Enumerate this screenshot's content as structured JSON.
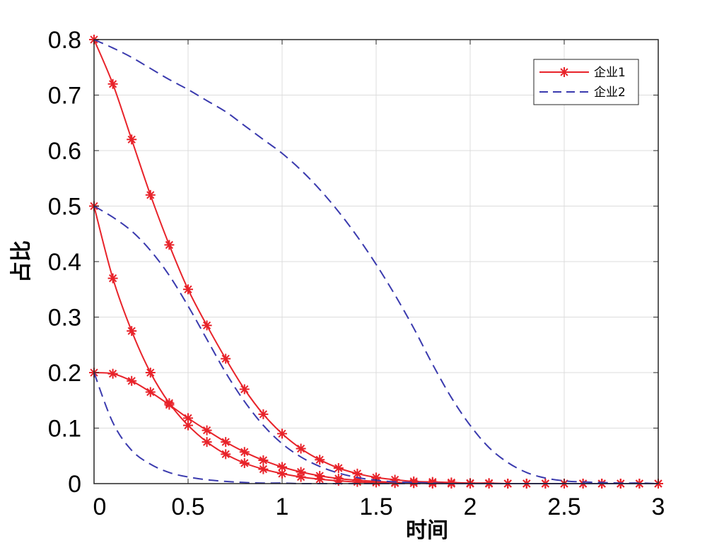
{
  "chart_data": {
    "type": "line",
    "xlabel": "时间",
    "ylabel": "占比",
    "xlim": [
      0,
      3
    ],
    "ylim": [
      0,
      0.8
    ],
    "xticks": [
      0,
      0.5,
      1,
      1.5,
      2,
      2.5,
      3
    ],
    "xtick_labels": [
      "0",
      "0.5",
      "1",
      "1.5",
      "2",
      "2.5",
      "3"
    ],
    "yticks": [
      0,
      0.1,
      0.2,
      0.3,
      0.4,
      0.5,
      0.6,
      0.7,
      0.8
    ],
    "ytick_labels": [
      "0",
      "0.1",
      "0.2",
      "0.3",
      "0.4",
      "0.5",
      "0.6",
      "0.7",
      "0.8"
    ],
    "grid": true,
    "legend_position": "top-right",
    "legend": [
      {
        "name": "企业1",
        "color": "#e8232a",
        "style": "solid-star"
      },
      {
        "name": "企业2",
        "color": "#3a3aae",
        "style": "dashed"
      }
    ],
    "x": [
      0,
      0.1,
      0.2,
      0.3,
      0.4,
      0.5,
      0.6,
      0.7,
      0.8,
      0.9,
      1.0,
      1.1,
      1.2,
      1.3,
      1.4,
      1.5,
      1.6,
      1.7,
      1.8,
      1.9,
      2.0,
      2.1,
      2.2,
      2.3,
      2.4,
      2.5,
      2.6,
      2.7,
      2.8,
      2.9,
      3.0
    ],
    "series": [
      {
        "name": "企业1",
        "color": "#e8232a",
        "marker": "star",
        "dashed": false,
        "values": [
          0.8,
          0.72,
          0.62,
          0.52,
          0.43,
          0.35,
          0.285,
          0.225,
          0.17,
          0.125,
          0.09,
          0.063,
          0.043,
          0.028,
          0.018,
          0.011,
          0.007,
          0.004,
          0.003,
          0.002,
          0.001,
          0.001,
          0.0,
          0.0,
          0.0,
          0.0,
          0.0,
          0.0,
          0.0,
          0.0,
          0.0
        ]
      },
      {
        "name": "企业1",
        "color": "#e8232a",
        "marker": "star",
        "dashed": false,
        "values": [
          0.5,
          0.37,
          0.275,
          0.2,
          0.145,
          0.105,
          0.075,
          0.053,
          0.037,
          0.026,
          0.018,
          0.012,
          0.008,
          0.005,
          0.003,
          0.002,
          0.001,
          0.001,
          0.0,
          0.0,
          0.0,
          0.0,
          0.0,
          0.0,
          0.0,
          0.0,
          0.0,
          0.0,
          0.0,
          0.0,
          0.0
        ]
      },
      {
        "name": "企业1",
        "color": "#e8232a",
        "marker": "star",
        "dashed": false,
        "values": [
          0.2,
          0.198,
          0.185,
          0.165,
          0.142,
          0.118,
          0.096,
          0.075,
          0.057,
          0.042,
          0.03,
          0.021,
          0.014,
          0.009,
          0.006,
          0.004,
          0.002,
          0.001,
          0.001,
          0.0,
          0.0,
          0.0,
          0.0,
          0.0,
          0.0,
          0.0,
          0.0,
          0.0,
          0.0,
          0.0,
          0.0
        ]
      },
      {
        "name": "企业2",
        "color": "#3a3aae",
        "marker": "none",
        "dashed": true,
        "values": [
          0.8,
          0.785,
          0.768,
          0.748,
          0.728,
          0.71,
          0.69,
          0.67,
          0.645,
          0.62,
          0.595,
          0.565,
          0.53,
          0.49,
          0.445,
          0.395,
          0.34,
          0.28,
          0.215,
          0.155,
          0.105,
          0.065,
          0.038,
          0.02,
          0.01,
          0.005,
          0.003,
          0.002,
          0.001,
          0.001,
          0.0
        ]
      },
      {
        "name": "企业2",
        "color": "#3a3aae",
        "marker": "none",
        "dashed": true,
        "values": [
          0.5,
          0.48,
          0.455,
          0.42,
          0.375,
          0.32,
          0.26,
          0.2,
          0.148,
          0.105,
          0.072,
          0.048,
          0.031,
          0.019,
          0.011,
          0.006,
          0.003,
          0.002,
          0.001,
          0.0,
          0.0,
          0.0,
          0.0,
          0.0,
          0.0,
          0.0,
          0.0,
          0.0,
          0.0,
          0.0,
          0.0
        ]
      },
      {
        "name": "企业2",
        "color": "#3a3aae",
        "marker": "none",
        "dashed": true,
        "values": [
          0.2,
          0.11,
          0.06,
          0.035,
          0.02,
          0.012,
          0.007,
          0.004,
          0.002,
          0.001,
          0.001,
          0.0,
          0.0,
          0.0,
          0.0,
          0.0,
          0.0,
          0.0,
          0.0,
          0.0,
          0.0,
          0.0,
          0.0,
          0.0,
          0.0,
          0.0,
          0.0,
          0.0,
          0.0,
          0.0,
          0.0
        ]
      }
    ]
  }
}
